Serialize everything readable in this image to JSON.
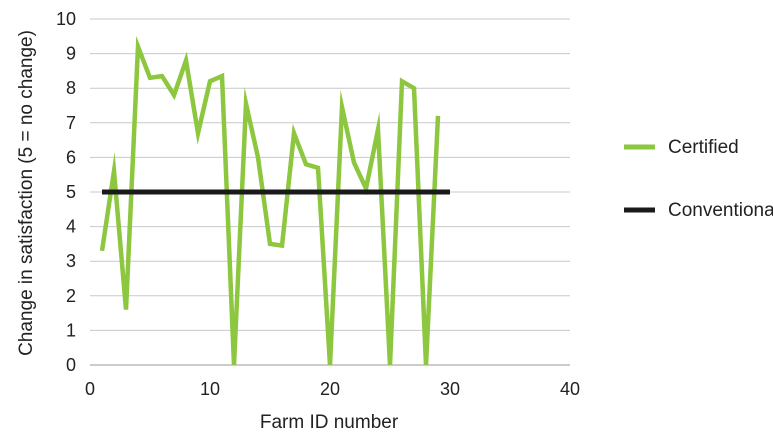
{
  "chart_data": {
    "type": "line",
    "title": "",
    "xlabel": "Farm ID number",
    "ylabel": "Change in satisfaction (5 = no change)",
    "xlim": [
      0,
      40
    ],
    "ylim": [
      0,
      10
    ],
    "x_ticks": [
      0,
      10,
      20,
      30,
      40
    ],
    "y_ticks": [
      0,
      1,
      2,
      3,
      4,
      5,
      6,
      7,
      8,
      9,
      10
    ],
    "grid": "horizontal",
    "legend_position": "right",
    "series": [
      {
        "name": "Certified",
        "color": "#8dc63f",
        "x": [
          1,
          2,
          3,
          4,
          5,
          6,
          7,
          8,
          9,
          10,
          11,
          12,
          13,
          14,
          15,
          16,
          17,
          18,
          19,
          20,
          21,
          22,
          23,
          24,
          25,
          26,
          27,
          28,
          29
        ],
        "y": [
          3.3,
          5.6,
          1.6,
          9.2,
          8.3,
          8.35,
          7.8,
          8.8,
          6.7,
          8.2,
          8.35,
          0,
          7.55,
          6.0,
          3.5,
          3.45,
          6.7,
          5.8,
          5.7,
          0,
          7.45,
          5.85,
          5.1,
          6.8,
          0,
          8.2,
          8.0,
          0,
          7.2
        ]
      },
      {
        "name": "Conventional",
        "color": "#1a1a1a",
        "x": [
          1,
          30
        ],
        "y": [
          5,
          5
        ]
      }
    ]
  }
}
